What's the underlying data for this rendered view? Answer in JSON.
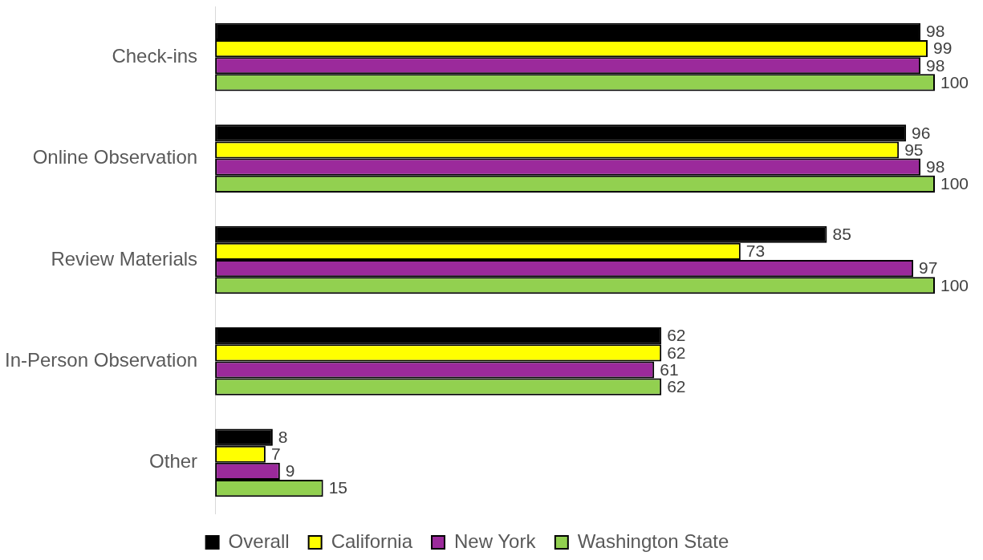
{
  "chart_data": {
    "type": "bar",
    "orientation": "horizontal",
    "categories": [
      "Check-ins",
      "Online Observation",
      "Review Materials",
      "In-Person Observation",
      "Other"
    ],
    "series": [
      {
        "name": "Overall",
        "color": "#000000",
        "values": [
          98,
          96,
          85,
          62,
          8
        ]
      },
      {
        "name": "California",
        "color": "#ffff00",
        "values": [
          99,
          95,
          73,
          62,
          7
        ]
      },
      {
        "name": "New York",
        "color": "#9b2a9b",
        "values": [
          98,
          98,
          97,
          61,
          9
        ]
      },
      {
        "name": "Washington State",
        "color": "#92d050",
        "values": [
          100,
          100,
          100,
          62,
          15
        ]
      }
    ],
    "data_labels": true,
    "grid": false,
    "legend": "bottom",
    "tick_labels": "y"
  }
}
